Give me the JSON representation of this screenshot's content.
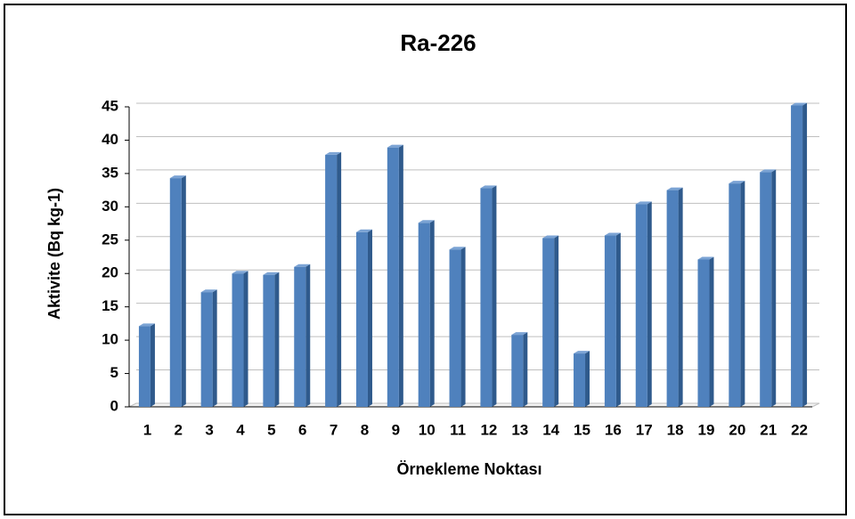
{
  "chart_data": {
    "type": "bar3d",
    "title": "Ra-226",
    "y_label": "Aktivite (Bq kg-1)",
    "x_label": "Örnekleme Noktası",
    "categories": [
      "1",
      "2",
      "3",
      "4",
      "5",
      "6",
      "7",
      "8",
      "9",
      "10",
      "11",
      "12",
      "13",
      "14",
      "15",
      "16",
      "17",
      "18",
      "19",
      "20",
      "21",
      "22"
    ],
    "values": [
      12.1,
      34.3,
      17.2,
      20,
      19.8,
      21,
      37.8,
      26.2,
      38.9,
      27.6,
      23.6,
      32.8,
      10.8,
      25.3,
      8,
      25.7,
      30.4,
      32.5,
      22.1,
      33.5,
      35.2,
      45.2
    ],
    "color": "#4f81bd",
    "ylim": [
      0,
      45
    ],
    "yticks": [
      0,
      5,
      10,
      15,
      20,
      25,
      30,
      35,
      40,
      45
    ],
    "grid": true
  }
}
